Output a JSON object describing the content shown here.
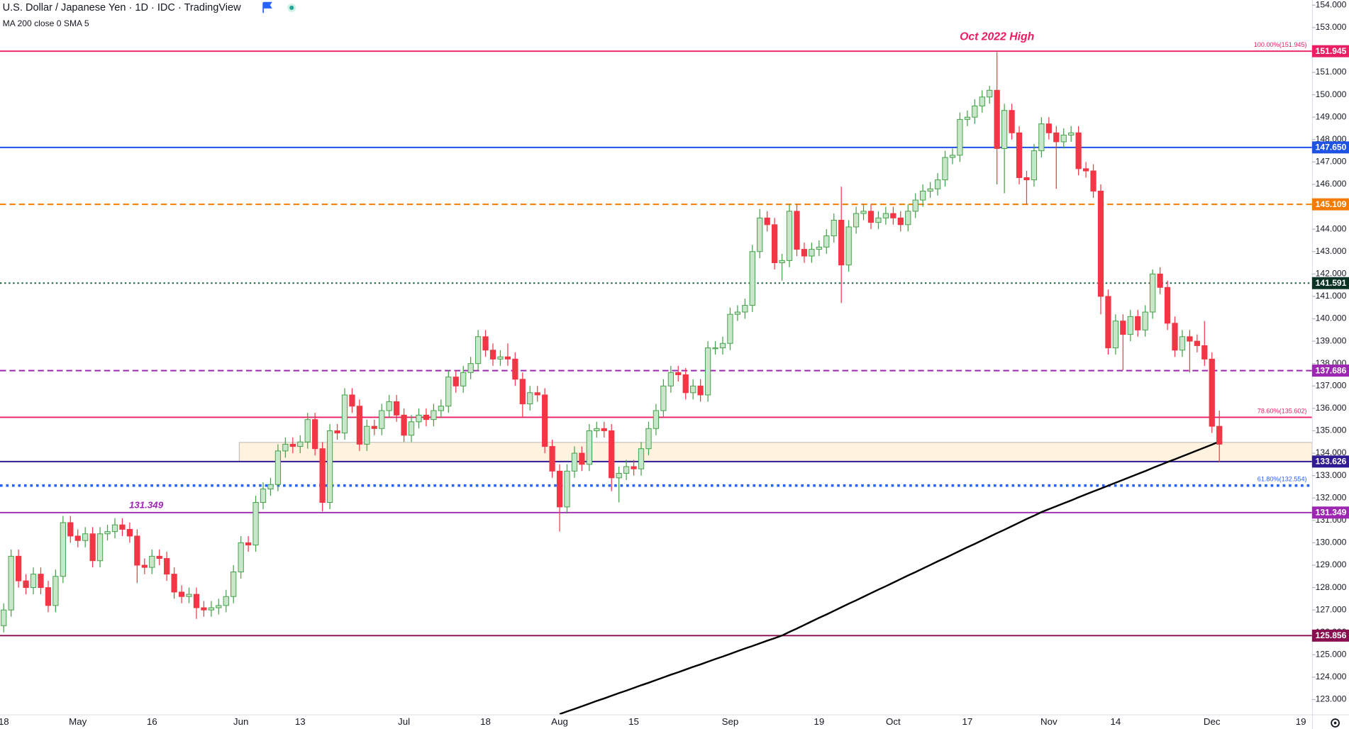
{
  "header": {
    "title": "U.S. Dollar / Japanese Yen · 1D · IDC · TradingView",
    "indicator": "MA 200 close 0 SMA 5"
  },
  "chart_data": {
    "type": "candlestick",
    "annotation": "Oct 2022 High",
    "categories": [
      "18",
      null,
      null,
      null,
      null,
      null,
      null,
      null,
      null,
      null,
      "May",
      null,
      null,
      null,
      null,
      null,
      null,
      null,
      null,
      null,
      "16",
      null,
      null,
      null,
      null,
      null,
      null,
      null,
      null,
      null,
      null,
      null,
      "Jun",
      null,
      null,
      null,
      null,
      null,
      null,
      null,
      "13",
      null,
      null,
      null,
      null,
      null,
      null,
      null,
      null,
      null,
      null,
      null,
      null,
      null,
      "Jul",
      null,
      null,
      null,
      null,
      null,
      null,
      null,
      null,
      null,
      null,
      "18",
      null,
      null,
      null,
      null,
      null,
      null,
      null,
      null,
      null,
      "Aug",
      null,
      null,
      null,
      null,
      null,
      null,
      null,
      null,
      null,
      "15",
      null,
      null,
      null,
      null,
      null,
      null,
      null,
      null,
      null,
      null,
      null,
      null,
      "Sep",
      null,
      null,
      null,
      null,
      null,
      null,
      null,
      null,
      null,
      null,
      null,
      "19",
      null,
      null,
      null,
      null,
      null,
      null,
      null,
      null,
      null,
      "Oct",
      null,
      null,
      null,
      null,
      null,
      null,
      null,
      null,
      null,
      "17",
      null,
      null,
      null,
      null,
      null,
      null,
      null,
      null,
      null,
      null,
      "Nov",
      null,
      null,
      null,
      null,
      null,
      null,
      null,
      null,
      "14",
      null,
      null,
      null,
      null,
      null,
      null,
      null,
      null,
      null,
      null,
      null,
      null,
      "Dec",
      null,
      null,
      null,
      null,
      null,
      null,
      null,
      null,
      null,
      null,
      null,
      "19",
      null
    ],
    "open": [
      126.3,
      127.0,
      129.4,
      128.3,
      128.0,
      128.6,
      128.0,
      127.2,
      128.5,
      130.9,
      130.3,
      130.1,
      130.4,
      129.2,
      130.4,
      130.5,
      130.8,
      130.6,
      130.3,
      129.0,
      128.9,
      129.4,
      129.3,
      128.6,
      127.8,
      127.6,
      127.7,
      127.1,
      127.0,
      127.1,
      127.2,
      127.6,
      128.7,
      130.0,
      129.9,
      131.8,
      132.4,
      132.6,
      134.1,
      134.4,
      134.3,
      134.5,
      135.5,
      134.2,
      131.8,
      135.0,
      134.9,
      136.6,
      136.1,
      134.4,
      135.2,
      135.1,
      135.9,
      136.3,
      135.7,
      134.8,
      135.4,
      135.7,
      135.5,
      135.9,
      136.1,
      137.4,
      137.0,
      137.6,
      138.0,
      139.2,
      138.6,
      138.2,
      138.3,
      138.2,
      137.3,
      136.2,
      136.7,
      136.6,
      134.3,
      133.2,
      131.6,
      133.2,
      134.0,
      133.5,
      135.0,
      135.1,
      135.0,
      132.9,
      133.1,
      133.4,
      133.3,
      134.2,
      135.1,
      135.9,
      137.0,
      137.6,
      137.5,
      136.7,
      137.0,
      136.6,
      138.7,
      138.7,
      138.9,
      140.2,
      140.3,
      140.6,
      143.0,
      144.5,
      144.2,
      142.5,
      142.6,
      144.8,
      143.1,
      142.8,
      143.1,
      143.2,
      143.7,
      144.4,
      142.4,
      144.1,
      144.7,
      144.8,
      144.3,
      144.5,
      144.7,
      144.5,
      144.2,
      144.8,
      145.3,
      145.7,
      145.8,
      146.2,
      147.2,
      147.3,
      148.9,
      149.0,
      149.5,
      149.9,
      150.2,
      147.6,
      149.3,
      148.3,
      146.3,
      146.2,
      147.5,
      148.7,
      148.3,
      147.9,
      148.2,
      148.3,
      146.7,
      146.6,
      145.7,
      141.0,
      138.7,
      139.9,
      139.3,
      140.1,
      139.5,
      140.3,
      142.0,
      141.4,
      139.8,
      138.6,
      139.2,
      139.0,
      138.8,
      138.2,
      135.2,
      null,
      null,
      null,
      null,
      null,
      null,
      null,
      null,
      null,
      null,
      null,
      null
    ],
    "high": [
      127.3,
      129.7,
      129.7,
      128.6,
      128.9,
      128.9,
      128.3,
      128.8,
      131.2,
      131.2,
      130.6,
      130.7,
      130.7,
      130.7,
      130.8,
      131.1,
      131.1,
      130.9,
      130.6,
      129.3,
      129.7,
      129.7,
      129.6,
      128.9,
      128.1,
      128.0,
      128.0,
      127.4,
      127.4,
      127.5,
      127.9,
      129.0,
      130.3,
      130.3,
      132.1,
      132.7,
      132.9,
      134.4,
      134.7,
      134.7,
      134.8,
      135.8,
      135.8,
      134.5,
      135.3,
      135.3,
      136.9,
      136.9,
      136.4,
      135.5,
      135.5,
      136.2,
      136.6,
      136.6,
      136.0,
      135.7,
      136.0,
      136.0,
      136.2,
      136.4,
      137.7,
      137.7,
      137.9,
      138.3,
      139.5,
      139.5,
      138.9,
      138.6,
      138.9,
      138.5,
      137.6,
      137.0,
      137.0,
      136.9,
      134.6,
      133.5,
      133.5,
      134.3,
      134.3,
      135.3,
      135.4,
      135.4,
      135.3,
      133.4,
      133.7,
      133.7,
      134.5,
      135.4,
      136.2,
      137.3,
      137.9,
      137.9,
      137.8,
      137.3,
      137.3,
      139.0,
      139.0,
      139.2,
      140.5,
      140.6,
      140.9,
      143.3,
      144.9,
      144.8,
      144.5,
      142.9,
      145.1,
      145.1,
      143.4,
      143.4,
      143.5,
      144.0,
      144.7,
      145.9,
      144.4,
      145.0,
      145.1,
      145.1,
      144.8,
      145.0,
      145.0,
      144.8,
      145.1,
      145.6,
      146.0,
      146.1,
      146.5,
      147.5,
      147.6,
      149.2,
      149.3,
      149.8,
      150.2,
      150.4,
      151.9,
      149.6,
      149.6,
      148.6,
      146.6,
      147.8,
      149.0,
      149.0,
      148.6,
      148.5,
      148.6,
      148.6,
      147.0,
      146.9,
      146.0,
      141.3,
      140.2,
      140.2,
      140.4,
      140.4,
      140.6,
      142.2,
      142.3,
      141.7,
      140.1,
      139.5,
      139.5,
      139.3,
      139.9,
      138.5,
      135.9,
      null,
      null,
      null,
      null,
      null,
      null,
      null,
      null,
      null,
      null,
      null,
      null
    ],
    "low": [
      126.0,
      126.7,
      128.0,
      127.7,
      127.7,
      127.7,
      126.9,
      126.9,
      128.2,
      130.0,
      129.8,
      129.8,
      128.9,
      128.9,
      130.1,
      130.2,
      130.3,
      130.0,
      128.2,
      128.6,
      128.6,
      129.0,
      128.3,
      127.5,
      127.3,
      127.3,
      126.6,
      126.7,
      126.7,
      126.8,
      126.9,
      127.3,
      128.4,
      129.6,
      129.6,
      131.5,
      132.1,
      132.3,
      133.8,
      134.0,
      134.0,
      134.2,
      133.9,
      131.4,
      131.5,
      134.6,
      134.6,
      135.8,
      134.1,
      134.1,
      134.8,
      134.8,
      135.6,
      135.4,
      134.5,
      134.5,
      135.1,
      135.2,
      135.2,
      135.6,
      135.8,
      136.7,
      136.7,
      137.3,
      137.7,
      138.3,
      137.9,
      137.9,
      137.9,
      137.0,
      135.6,
      135.9,
      136.3,
      134.0,
      132.9,
      130.5,
      131.3,
      132.9,
      133.2,
      133.2,
      134.7,
      134.7,
      132.3,
      131.8,
      132.8,
      133.0,
      133.0,
      133.9,
      134.8,
      135.6,
      136.7,
      137.2,
      136.4,
      136.4,
      136.3,
      136.3,
      138.4,
      138.4,
      138.6,
      139.9,
      140.0,
      140.3,
      142.7,
      143.9,
      142.2,
      141.7,
      142.3,
      142.8,
      142.5,
      142.5,
      142.8,
      142.9,
      143.4,
      140.7,
      142.1,
      143.8,
      144.4,
      144.0,
      144.0,
      144.2,
      144.2,
      143.9,
      143.9,
      144.5,
      145.0,
      145.4,
      145.5,
      145.9,
      146.9,
      147.0,
      148.6,
      148.7,
      149.2,
      149.6,
      146.0,
      145.6,
      148.0,
      146.0,
      145.1,
      145.9,
      147.2,
      148.0,
      145.8,
      147.6,
      147.9,
      146.4,
      146.3,
      145.4,
      140.2,
      138.4,
      138.4,
      137.7,
      139.0,
      139.2,
      139.2,
      140.0,
      141.1,
      139.5,
      138.3,
      138.3,
      137.6,
      138.5,
      137.9,
      134.9,
      133.6,
      null,
      null,
      null,
      null,
      null,
      null,
      null,
      null,
      null,
      null,
      null,
      null
    ],
    "close": [
      127.0,
      129.4,
      128.3,
      128.0,
      128.6,
      128.0,
      127.2,
      128.5,
      130.9,
      130.3,
      130.1,
      130.4,
      129.2,
      130.4,
      130.5,
      130.8,
      130.6,
      130.3,
      129.0,
      128.9,
      129.4,
      129.3,
      128.6,
      127.8,
      127.6,
      127.7,
      127.1,
      127.0,
      127.1,
      127.2,
      127.6,
      128.7,
      130.0,
      129.9,
      131.8,
      132.4,
      132.6,
      134.1,
      134.4,
      134.3,
      134.5,
      135.5,
      134.2,
      131.8,
      135.0,
      134.9,
      136.6,
      136.1,
      134.4,
      135.2,
      135.1,
      135.9,
      136.3,
      135.7,
      134.8,
      135.4,
      135.7,
      135.5,
      135.9,
      136.1,
      137.4,
      137.0,
      137.6,
      138.0,
      139.2,
      138.6,
      138.2,
      138.3,
      138.2,
      137.3,
      136.2,
      136.7,
      136.6,
      134.3,
      133.2,
      131.6,
      133.2,
      134.0,
      133.5,
      135.0,
      135.1,
      135.0,
      132.9,
      133.1,
      133.4,
      133.3,
      134.2,
      135.1,
      135.9,
      137.0,
      137.6,
      137.5,
      136.7,
      137.0,
      136.6,
      138.7,
      138.7,
      138.9,
      140.2,
      140.3,
      140.6,
      143.0,
      144.5,
      144.2,
      142.5,
      142.6,
      144.8,
      143.1,
      142.8,
      143.1,
      143.2,
      143.7,
      144.4,
      142.4,
      144.1,
      144.7,
      144.8,
      144.3,
      144.5,
      144.7,
      144.5,
      144.2,
      144.8,
      145.3,
      145.7,
      145.8,
      146.2,
      147.2,
      147.3,
      148.9,
      149.0,
      149.5,
      149.9,
      150.2,
      147.6,
      149.3,
      148.3,
      146.3,
      146.2,
      147.5,
      148.7,
      148.3,
      147.9,
      148.2,
      148.3,
      146.7,
      146.6,
      145.7,
      141.0,
      138.7,
      139.9,
      139.3,
      140.1,
      139.5,
      140.3,
      142.0,
      141.4,
      139.8,
      138.6,
      139.2,
      139.0,
      138.8,
      138.2,
      135.2,
      134.4,
      null,
      null,
      null,
      null,
      null,
      null,
      null,
      null,
      null,
      null,
      null,
      null
    ],
    "up_color": "#43a047",
    "up_fill": "#c8e6c9",
    "down_color": "#f23645",
    "ma": {
      "color": "#000000",
      "values": [
        null,
        null,
        null,
        null,
        null,
        null,
        null,
        null,
        null,
        null,
        null,
        null,
        null,
        null,
        null,
        null,
        null,
        null,
        null,
        null,
        null,
        null,
        null,
        null,
        null,
        null,
        null,
        null,
        null,
        null,
        null,
        null,
        null,
        null,
        null,
        null,
        null,
        null,
        null,
        null,
        null,
        null,
        null,
        null,
        null,
        null,
        null,
        null,
        null,
        null,
        null,
        null,
        null,
        null,
        null,
        null,
        null,
        null,
        null,
        null,
        null,
        null,
        null,
        null,
        null,
        null,
        null,
        null,
        null,
        null,
        null,
        null,
        null,
        null,
        null,
        122.35,
        122.47,
        122.58,
        122.7,
        122.82,
        122.94,
        123.05,
        123.17,
        123.29,
        123.4,
        123.52,
        123.64,
        123.75,
        123.87,
        123.99,
        124.11,
        124.22,
        124.34,
        124.46,
        124.57,
        124.69,
        124.81,
        124.92,
        125.04,
        125.16,
        125.28,
        125.39,
        125.51,
        125.63,
        125.74,
        125.86,
        126.02,
        126.17,
        126.33,
        126.49,
        126.65,
        126.8,
        126.96,
        127.12,
        127.28,
        127.43,
        127.59,
        127.75,
        127.91,
        128.06,
        128.22,
        128.38,
        128.54,
        128.69,
        128.85,
        129.01,
        129.17,
        129.32,
        129.48,
        129.64,
        129.8,
        129.95,
        130.11,
        130.27,
        130.43,
        130.58,
        130.74,
        130.9,
        131.06,
        131.21,
        131.37,
        131.5,
        131.63,
        131.76,
        131.89,
        132.03,
        132.16,
        132.29,
        132.42,
        132.55,
        132.68,
        132.81,
        132.94,
        133.07,
        133.2,
        133.34,
        133.47,
        133.6,
        133.73,
        133.86,
        133.99,
        134.12,
        134.25,
        134.38,
        134.52,
        null,
        null,
        null,
        null,
        null,
        null,
        null,
        null,
        null,
        null,
        null,
        null
      ]
    },
    "zone": {
      "low": 133.626,
      "high": 134.48,
      "color": "#fff3e0"
    },
    "levels": [
      {
        "value": 151.945,
        "label": "151.945",
        "fib": "100.00%(151.945)",
        "color": "#e91e63",
        "style": "solid"
      },
      {
        "value": 147.65,
        "label": "147.650",
        "color": "#1e53e5",
        "style": "solid"
      },
      {
        "value": 145.109,
        "label": "145.109",
        "color": "#f57c00",
        "style": "dashed"
      },
      {
        "value": 141.591,
        "label": "141.591",
        "color": "#1b5e3b",
        "badge": "#0b3324",
        "style": "dotted"
      },
      {
        "value": 137.686,
        "label": "137.686",
        "color": "#9c27b0",
        "style": "dashed"
      },
      {
        "value": 135.602,
        "fib": "78.60%(135.602)",
        "color": "#e91e63",
        "style": "solid"
      },
      {
        "value": 133.626,
        "label": "133.626",
        "color": "#311b92",
        "style": "solid"
      },
      {
        "value": 132.554,
        "fib": "61.80%(132.554)",
        "color": "#2962ff",
        "style": "heavydot"
      },
      {
        "value": 131.349,
        "label": "131.349",
        "note": "131.349",
        "color": "#9c27b0",
        "style": "solid"
      },
      {
        "value": 125.856,
        "label": "125.856",
        "color": "#880e4f",
        "style": "solid"
      }
    ],
    "ylim": [
      122.34,
      154.23
    ],
    "yticks": [
      {
        "value": 123,
        "label": "123.000"
      },
      {
        "value": 124,
        "label": "124.000"
      },
      {
        "value": 125,
        "label": "125.000"
      },
      {
        "value": 126,
        "label": "126.000"
      },
      {
        "value": 127,
        "label": "127.000"
      },
      {
        "value": 128,
        "label": "128.000"
      },
      {
        "value": 129,
        "label": "129.000"
      },
      {
        "value": 130,
        "label": "130.000"
      },
      {
        "value": 131,
        "label": "131.000"
      },
      {
        "value": 132,
        "label": "132.000"
      },
      {
        "value": 133,
        "label": "133.000"
      },
      {
        "value": 134,
        "label": "134.000"
      },
      {
        "value": 135,
        "label": "135.000"
      },
      {
        "value": 136,
        "label": "136.000"
      },
      {
        "value": 137,
        "label": "137.000"
      },
      {
        "value": 138,
        "label": "138.000"
      },
      {
        "value": 139,
        "label": "139.000"
      },
      {
        "value": 140,
        "label": "140.000"
      },
      {
        "value": 141,
        "label": "141.000"
      },
      {
        "value": 142,
        "label": "142.000"
      },
      {
        "value": 143,
        "label": "143.000"
      },
      {
        "value": 144,
        "label": "144.000"
      },
      {
        "value": 145,
        "label": "145.000"
      },
      {
        "value": 146,
        "label": "146.000"
      },
      {
        "value": 147,
        "label": "147.000"
      },
      {
        "value": 148,
        "label": "148.000"
      },
      {
        "value": 149,
        "label": "149.000"
      },
      {
        "value": 150,
        "label": "150.000"
      },
      {
        "value": 151,
        "label": "151.000"
      },
      {
        "value": 152,
        "label": "152.000"
      },
      {
        "value": 153,
        "label": "153.000"
      },
      {
        "value": 154,
        "label": "154.000"
      }
    ]
  }
}
